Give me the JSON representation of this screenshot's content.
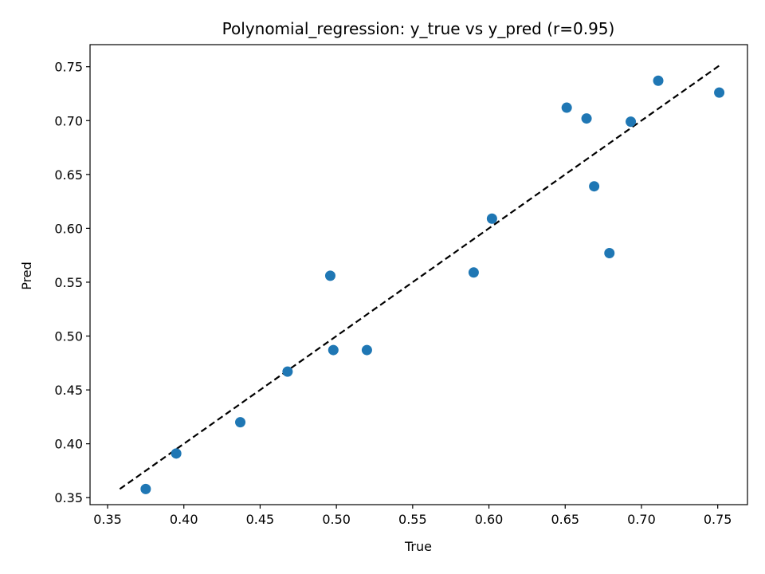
{
  "chart_data": {
    "type": "scatter",
    "title": "Polynomial_regression: y_true vs y_pred (r=0.95)",
    "xlabel": "True",
    "ylabel": "Pred",
    "xlim": [
      0.3385,
      0.7695
    ],
    "ylim": [
      0.3435,
      0.7705
    ],
    "xticks": [
      0.35,
      0.4,
      0.45,
      0.5,
      0.55,
      0.6,
      0.65,
      0.7,
      0.75
    ],
    "xtick_labels": [
      "0.35",
      "0.40",
      "0.45",
      "0.50",
      "0.55",
      "0.60",
      "0.65",
      "0.70",
      "0.75"
    ],
    "yticks": [
      0.35,
      0.4,
      0.45,
      0.5,
      0.55,
      0.6,
      0.65,
      0.7,
      0.75
    ],
    "ytick_labels": [
      "0.35",
      "0.40",
      "0.45",
      "0.50",
      "0.55",
      "0.60",
      "0.65",
      "0.70",
      "0.75"
    ],
    "grid": false,
    "series": [
      {
        "name": "predictions",
        "color": "#1f77b4",
        "x": [
          0.375,
          0.395,
          0.437,
          0.468,
          0.496,
          0.498,
          0.52,
          0.59,
          0.602,
          0.651,
          0.664,
          0.669,
          0.679,
          0.693,
          0.711,
          0.751
        ],
        "y": [
          0.358,
          0.391,
          0.42,
          0.467,
          0.556,
          0.487,
          0.487,
          0.559,
          0.609,
          0.712,
          0.702,
          0.639,
          0.577,
          0.699,
          0.737,
          0.726
        ]
      }
    ],
    "reference_line": {
      "name": "identity",
      "color": "#000000",
      "style": "dashed",
      "x": [
        0.358,
        0.751
      ],
      "y": [
        0.358,
        0.751
      ]
    }
  }
}
